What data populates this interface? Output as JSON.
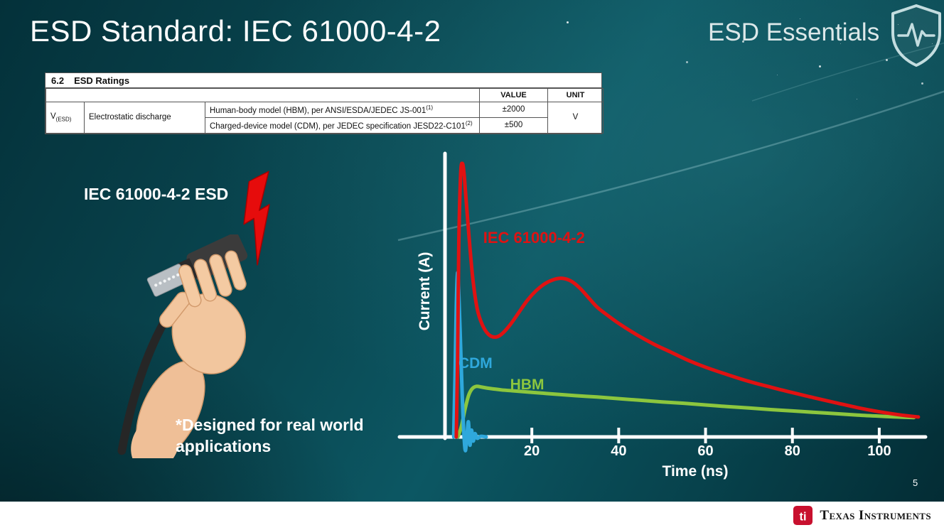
{
  "slide": {
    "title": "ESD Standard: IEC 61000-4-2",
    "series_title": "ESD Essentials",
    "page_number": "5",
    "illustration_label": "IEC 61000-4-2 ESD",
    "footnote": "*Designed for real world\napplications"
  },
  "ratings_table": {
    "section_number": "6.2",
    "section_title": "ESD Ratings",
    "headers": {
      "value": "VALUE",
      "unit": "UNIT"
    },
    "symbol": "V",
    "symbol_sub": "(ESD)",
    "parameter": "Electrostatic discharge",
    "rows": [
      {
        "description": "Human-body model (HBM), per ANSI/ESDA/JEDEC JS-001",
        "sup": "(1)",
        "value": "±2000"
      },
      {
        "description": "Charged-device model (CDM), per JEDEC specification JESD22-C101",
        "sup": "(2)",
        "value": "±500"
      }
    ],
    "unit": "V"
  },
  "footer": {
    "brand": "Texas Instruments"
  },
  "icons": {
    "shield": "shield-pulse-icon",
    "bolt": "lightning-bolt-icon",
    "ti_logo": "ti-logo-icon"
  },
  "colors": {
    "iec_red": "#e01212",
    "cdm_blue": "#2fa8dc",
    "hbm_green": "#8cc63e",
    "background_teal": "#0a4a54"
  },
  "chart_data": {
    "type": "line",
    "title": "",
    "xlabel": "Time (ns)",
    "ylabel": "Current (A)",
    "x_range": [
      0,
      110
    ],
    "y_range": [
      0,
      1
    ],
    "x_ticks": [
      20,
      40,
      60,
      80,
      100
    ],
    "grid": false,
    "legend": "inline-labels",
    "series": [
      {
        "name": "IEC 61000-4-2",
        "color": "#e01212",
        "label_pos": [
          8.8,
          0.76
        ],
        "points": [
          [
            2.6,
            0
          ],
          [
            2.9,
            0.28
          ],
          [
            3.2,
            0.72
          ],
          [
            3.6,
            0.96
          ],
          [
            4.0,
            1.0
          ],
          [
            4.4,
            0.96
          ],
          [
            4.9,
            0.86
          ],
          [
            5.6,
            0.72
          ],
          [
            6.4,
            0.58
          ],
          [
            7.4,
            0.47
          ],
          [
            8.6,
            0.41
          ],
          [
            10,
            0.375
          ],
          [
            11.5,
            0.365
          ],
          [
            13,
            0.375
          ],
          [
            15,
            0.41
          ],
          [
            17,
            0.455
          ],
          [
            19,
            0.5
          ],
          [
            21,
            0.535
          ],
          [
            23,
            0.56
          ],
          [
            25,
            0.575
          ],
          [
            27,
            0.58
          ],
          [
            29,
            0.57
          ],
          [
            31,
            0.545
          ],
          [
            33,
            0.51
          ],
          [
            35,
            0.475
          ],
          [
            37,
            0.45
          ],
          [
            40,
            0.415
          ],
          [
            44,
            0.375
          ],
          [
            48,
            0.34
          ],
          [
            52,
            0.31
          ],
          [
            56,
            0.28
          ],
          [
            60,
            0.255
          ],
          [
            65,
            0.228
          ],
          [
            70,
            0.203
          ],
          [
            75,
            0.182
          ],
          [
            80,
            0.162
          ],
          [
            85,
            0.143
          ],
          [
            90,
            0.125
          ],
          [
            95,
            0.107
          ],
          [
            100,
            0.092
          ],
          [
            105,
            0.08
          ],
          [
            109,
            0.073
          ]
        ]
      },
      {
        "name": "CDM",
        "color": "#2fa8dc",
        "label_pos": [
          3.1,
          0.3
        ],
        "points": [
          [
            2.0,
            0
          ],
          [
            2.3,
            0.22
          ],
          [
            2.6,
            0.48
          ],
          [
            2.9,
            0.6
          ],
          [
            3.2,
            0.52
          ],
          [
            3.6,
            0.33
          ],
          [
            4.0,
            0.14
          ],
          [
            4.35,
            0.01
          ],
          [
            4.7,
            -0.05
          ],
          [
            5.05,
            0.005
          ],
          [
            5.4,
            0.055
          ],
          [
            5.75,
            -0.03
          ],
          [
            6.1,
            0.025
          ],
          [
            6.5,
            -0.015
          ],
          [
            6.9,
            0.012
          ],
          [
            7.4,
            -0.005
          ],
          [
            8.2,
            0.002
          ],
          [
            9.5,
            0
          ]
        ]
      },
      {
        "name": "HBM",
        "color": "#8cc63e",
        "label_pos": [
          15,
          0.22
        ],
        "points": [
          [
            3.0,
            0
          ],
          [
            3.8,
            0.04
          ],
          [
            4.6,
            0.1
          ],
          [
            5.4,
            0.15
          ],
          [
            6.2,
            0.175
          ],
          [
            7.2,
            0.185
          ],
          [
            8.5,
            0.182
          ],
          [
            10,
            0.178
          ],
          [
            13,
            0.172
          ],
          [
            16,
            0.168
          ],
          [
            20,
            0.163
          ],
          [
            25,
            0.157
          ],
          [
            30,
            0.151
          ],
          [
            35,
            0.146
          ],
          [
            40,
            0.14
          ],
          [
            45,
            0.134
          ],
          [
            50,
            0.128
          ],
          [
            55,
            0.123
          ],
          [
            60,
            0.117
          ],
          [
            65,
            0.111
          ],
          [
            70,
            0.106
          ],
          [
            75,
            0.1
          ],
          [
            80,
            0.095
          ],
          [
            85,
            0.09
          ],
          [
            90,
            0.085
          ],
          [
            95,
            0.08
          ],
          [
            100,
            0.076
          ],
          [
            104,
            0.073
          ],
          [
            108,
            0.071
          ]
        ]
      }
    ]
  }
}
